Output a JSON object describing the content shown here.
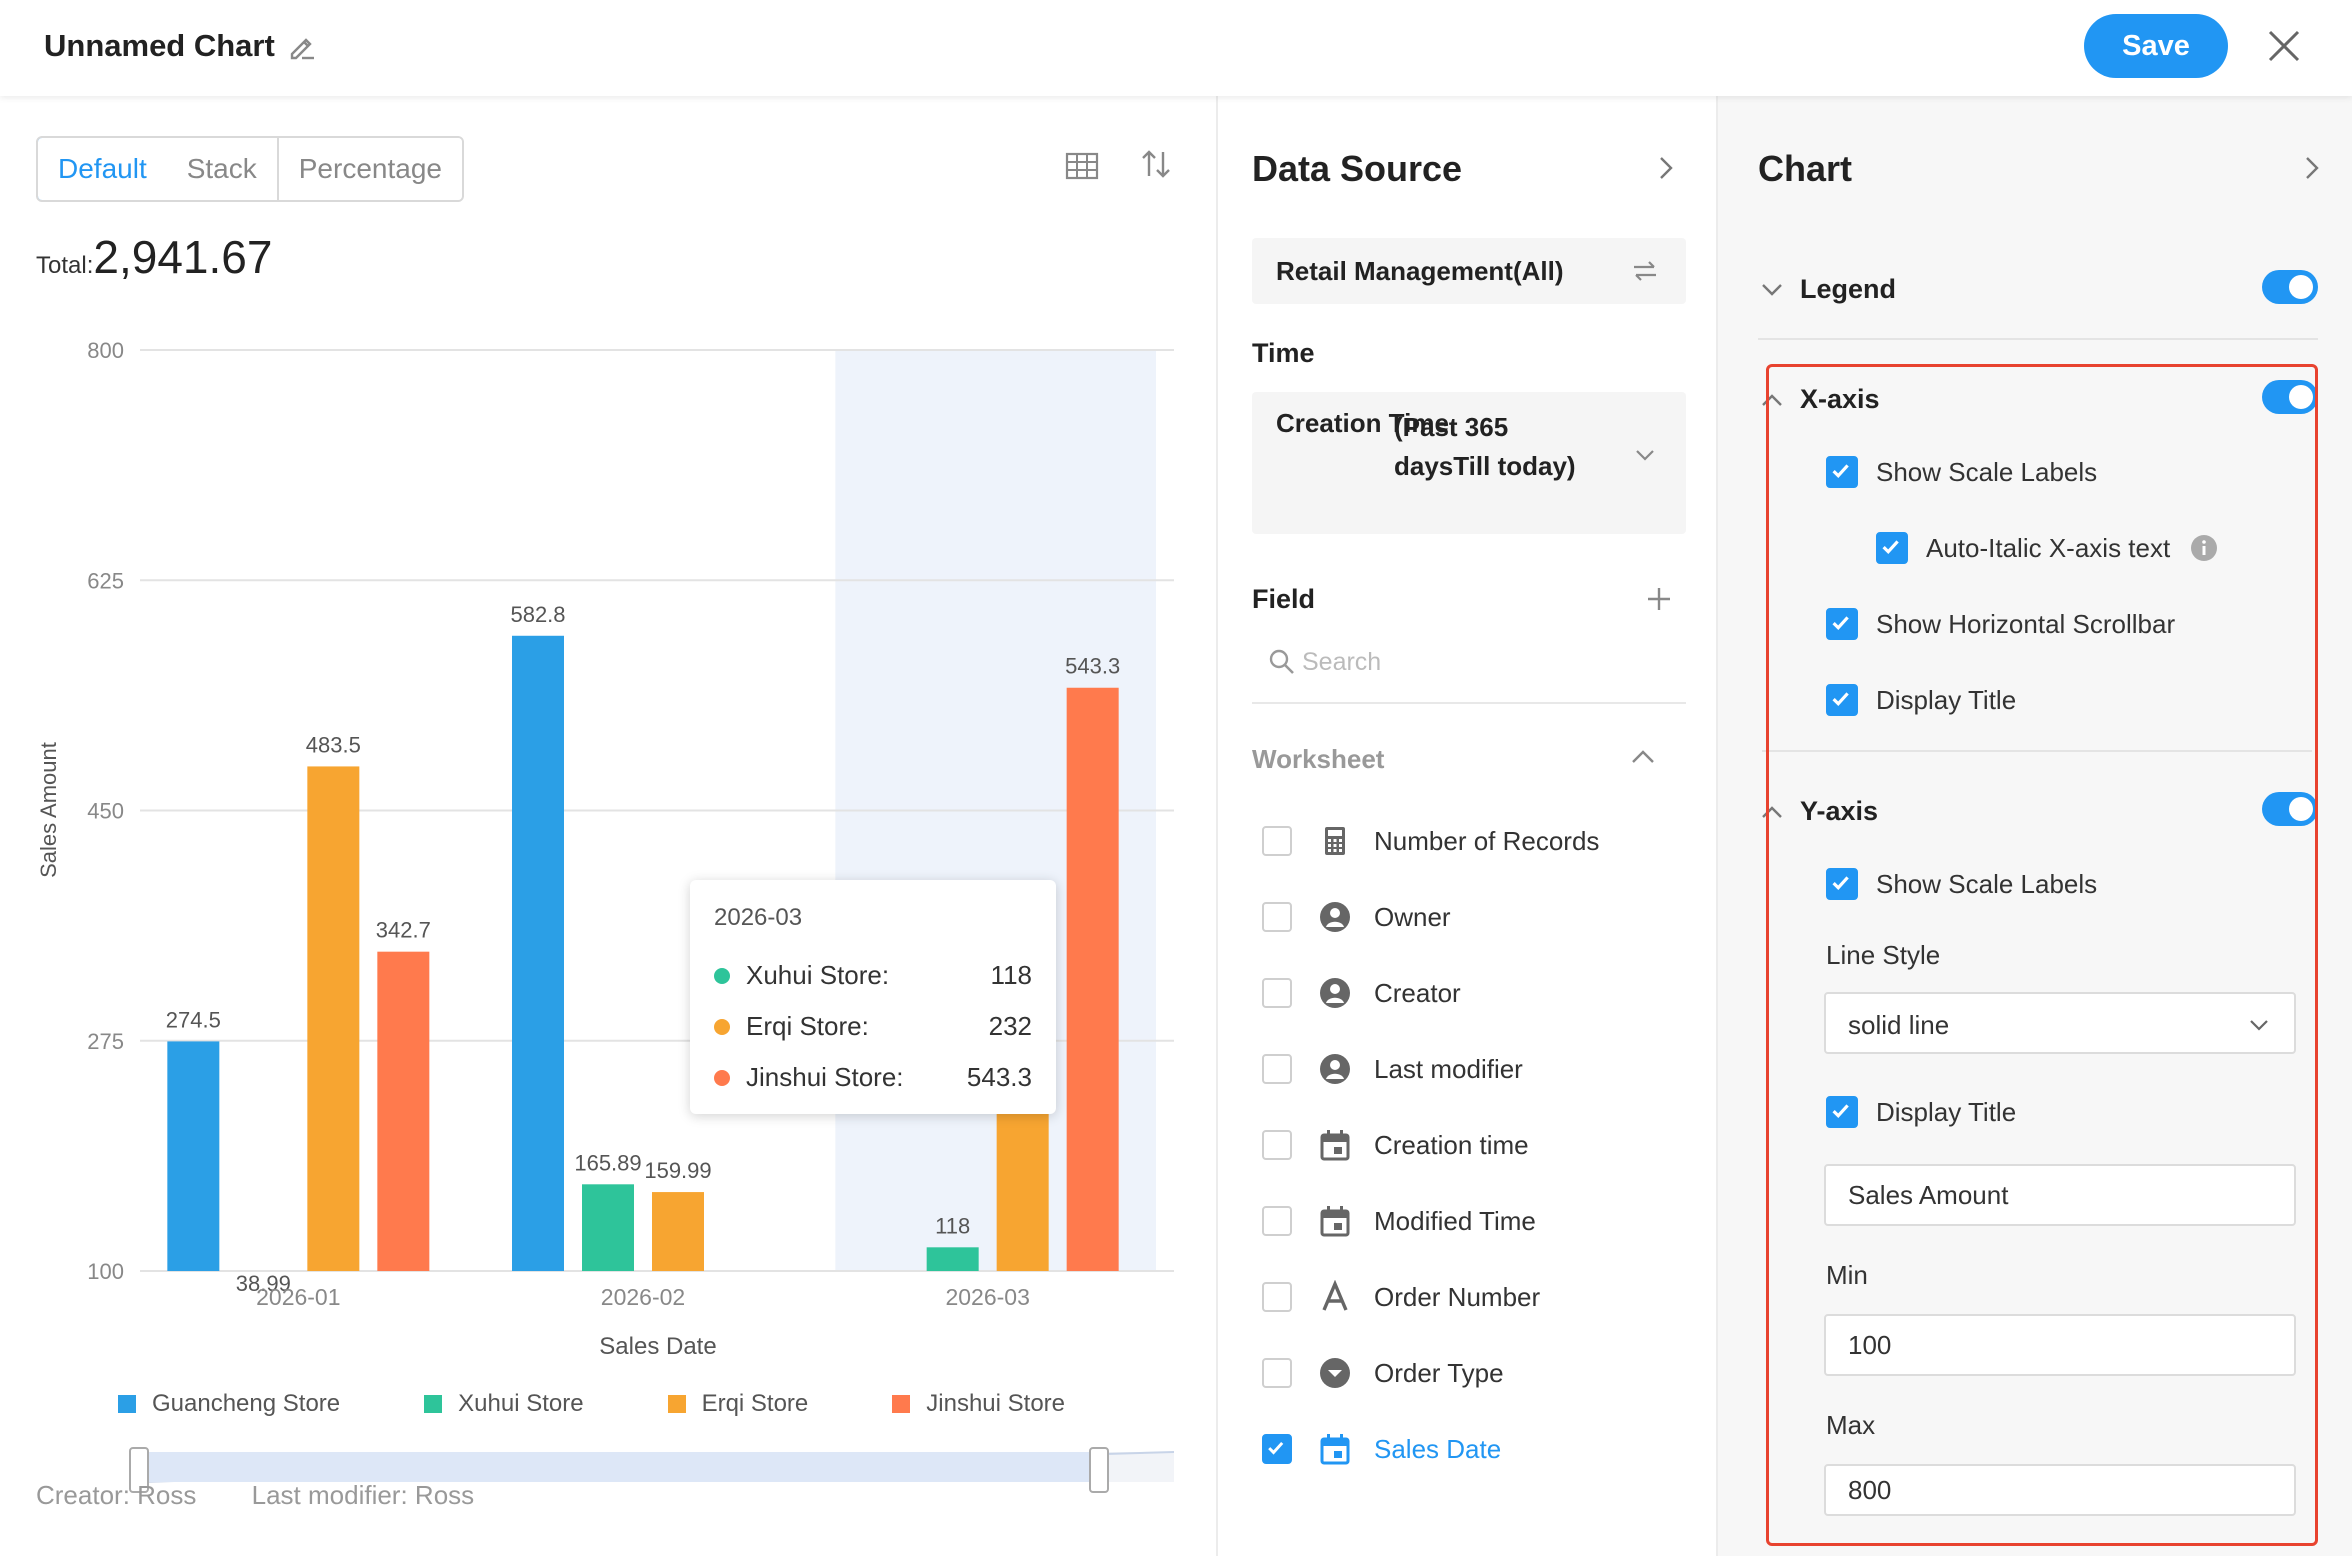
{
  "header": {
    "title": "Unnamed Chart",
    "save_label": "Save"
  },
  "modes": {
    "default": "Default",
    "stack": "Stack",
    "percentage": "Percentage"
  },
  "total": {
    "label": "Total:",
    "value": "2,941.67"
  },
  "chart_data": {
    "type": "bar",
    "categories": [
      "2026-01",
      "2026-02",
      "2026-03"
    ],
    "series": [
      {
        "name": "Guancheng Store",
        "color": "#2b9fe6",
        "values": [
          274.5,
          582.8,
          null
        ]
      },
      {
        "name": "Xuhui Store",
        "color": "#2ec49a",
        "values": [
          38.99,
          165.89,
          118
        ]
      },
      {
        "name": "Erqi Store",
        "color": "#f7a531",
        "values": [
          483.5,
          159.99,
          232
        ]
      },
      {
        "name": "Jinshui Store",
        "color": "#ff7a4d",
        "values": [
          342.7,
          null,
          543.3
        ]
      }
    ],
    "value_labels": [
      [
        "274.5",
        "38.99",
        "483.5",
        "342.7"
      ],
      [
        "582.8",
        "165.89",
        "159.99",
        ""
      ],
      [
        "",
        "118",
        "",
        "543.3"
      ]
    ],
    "yticks": [
      "800",
      "625",
      "450",
      "275",
      "100"
    ],
    "ylim": [
      100,
      800
    ],
    "xlabel": "Sales Date",
    "ylabel": "Sales Amount",
    "highlighted_category": "2026-03",
    "grid": true,
    "legend_position": "bottom"
  },
  "tooltip": {
    "title": "2026-03",
    "rows": [
      {
        "name": "Xuhui Store:",
        "value": "118",
        "color": "#2ec49a"
      },
      {
        "name": "Erqi Store:",
        "value": "232",
        "color": "#f7a531"
      },
      {
        "name": "Jinshui Store:",
        "value": "543.3",
        "color": "#ff7a4d"
      }
    ]
  },
  "footer": {
    "creator": "Creator: Ross",
    "modifier": "Last modifier: Ross"
  },
  "data_source": {
    "title": "Data Source",
    "source": "Retail Management(All)",
    "time_section": "Time",
    "time_label": "Creation Time",
    "time_value": "(Past 365 daysTill today)",
    "field_section": "Field",
    "search_placeholder": "Search",
    "worksheet_label": "Worksheet",
    "fields": [
      {
        "name": "Number of Records",
        "icon": "calculator-icon",
        "checked": false
      },
      {
        "name": "Owner",
        "icon": "user-icon",
        "checked": false
      },
      {
        "name": "Creator",
        "icon": "user-icon",
        "checked": false
      },
      {
        "name": "Last modifier",
        "icon": "user-icon",
        "checked": false
      },
      {
        "name": "Creation time",
        "icon": "calendar-icon",
        "checked": false
      },
      {
        "name": "Modified Time",
        "icon": "calendar-icon",
        "checked": false
      },
      {
        "name": "Order Number",
        "icon": "text-icon",
        "checked": false
      },
      {
        "name": "Order Type",
        "icon": "dropdown-icon",
        "checked": false
      },
      {
        "name": "Sales Date",
        "icon": "calendar-icon",
        "checked": true
      }
    ]
  },
  "chart_settings": {
    "title": "Chart",
    "legend_label": "Legend",
    "legend_on": true,
    "xaxis": {
      "label": "X-axis",
      "enabled": true,
      "show_scale_labels": "Show Scale Labels",
      "auto_italic": "Auto-Italic X-axis text",
      "show_scrollbar": "Show Horizontal Scrollbar",
      "display_title": "Display Title"
    },
    "yaxis": {
      "label": "Y-axis",
      "enabled": true,
      "show_scale_labels": "Show Scale Labels",
      "line_style_label": "Line Style",
      "line_style_value": "solid line",
      "display_title": "Display Title",
      "title_value": "Sales Amount",
      "min_label": "Min",
      "min_value": "100",
      "max_label": "Max",
      "max_value": "800"
    }
  }
}
